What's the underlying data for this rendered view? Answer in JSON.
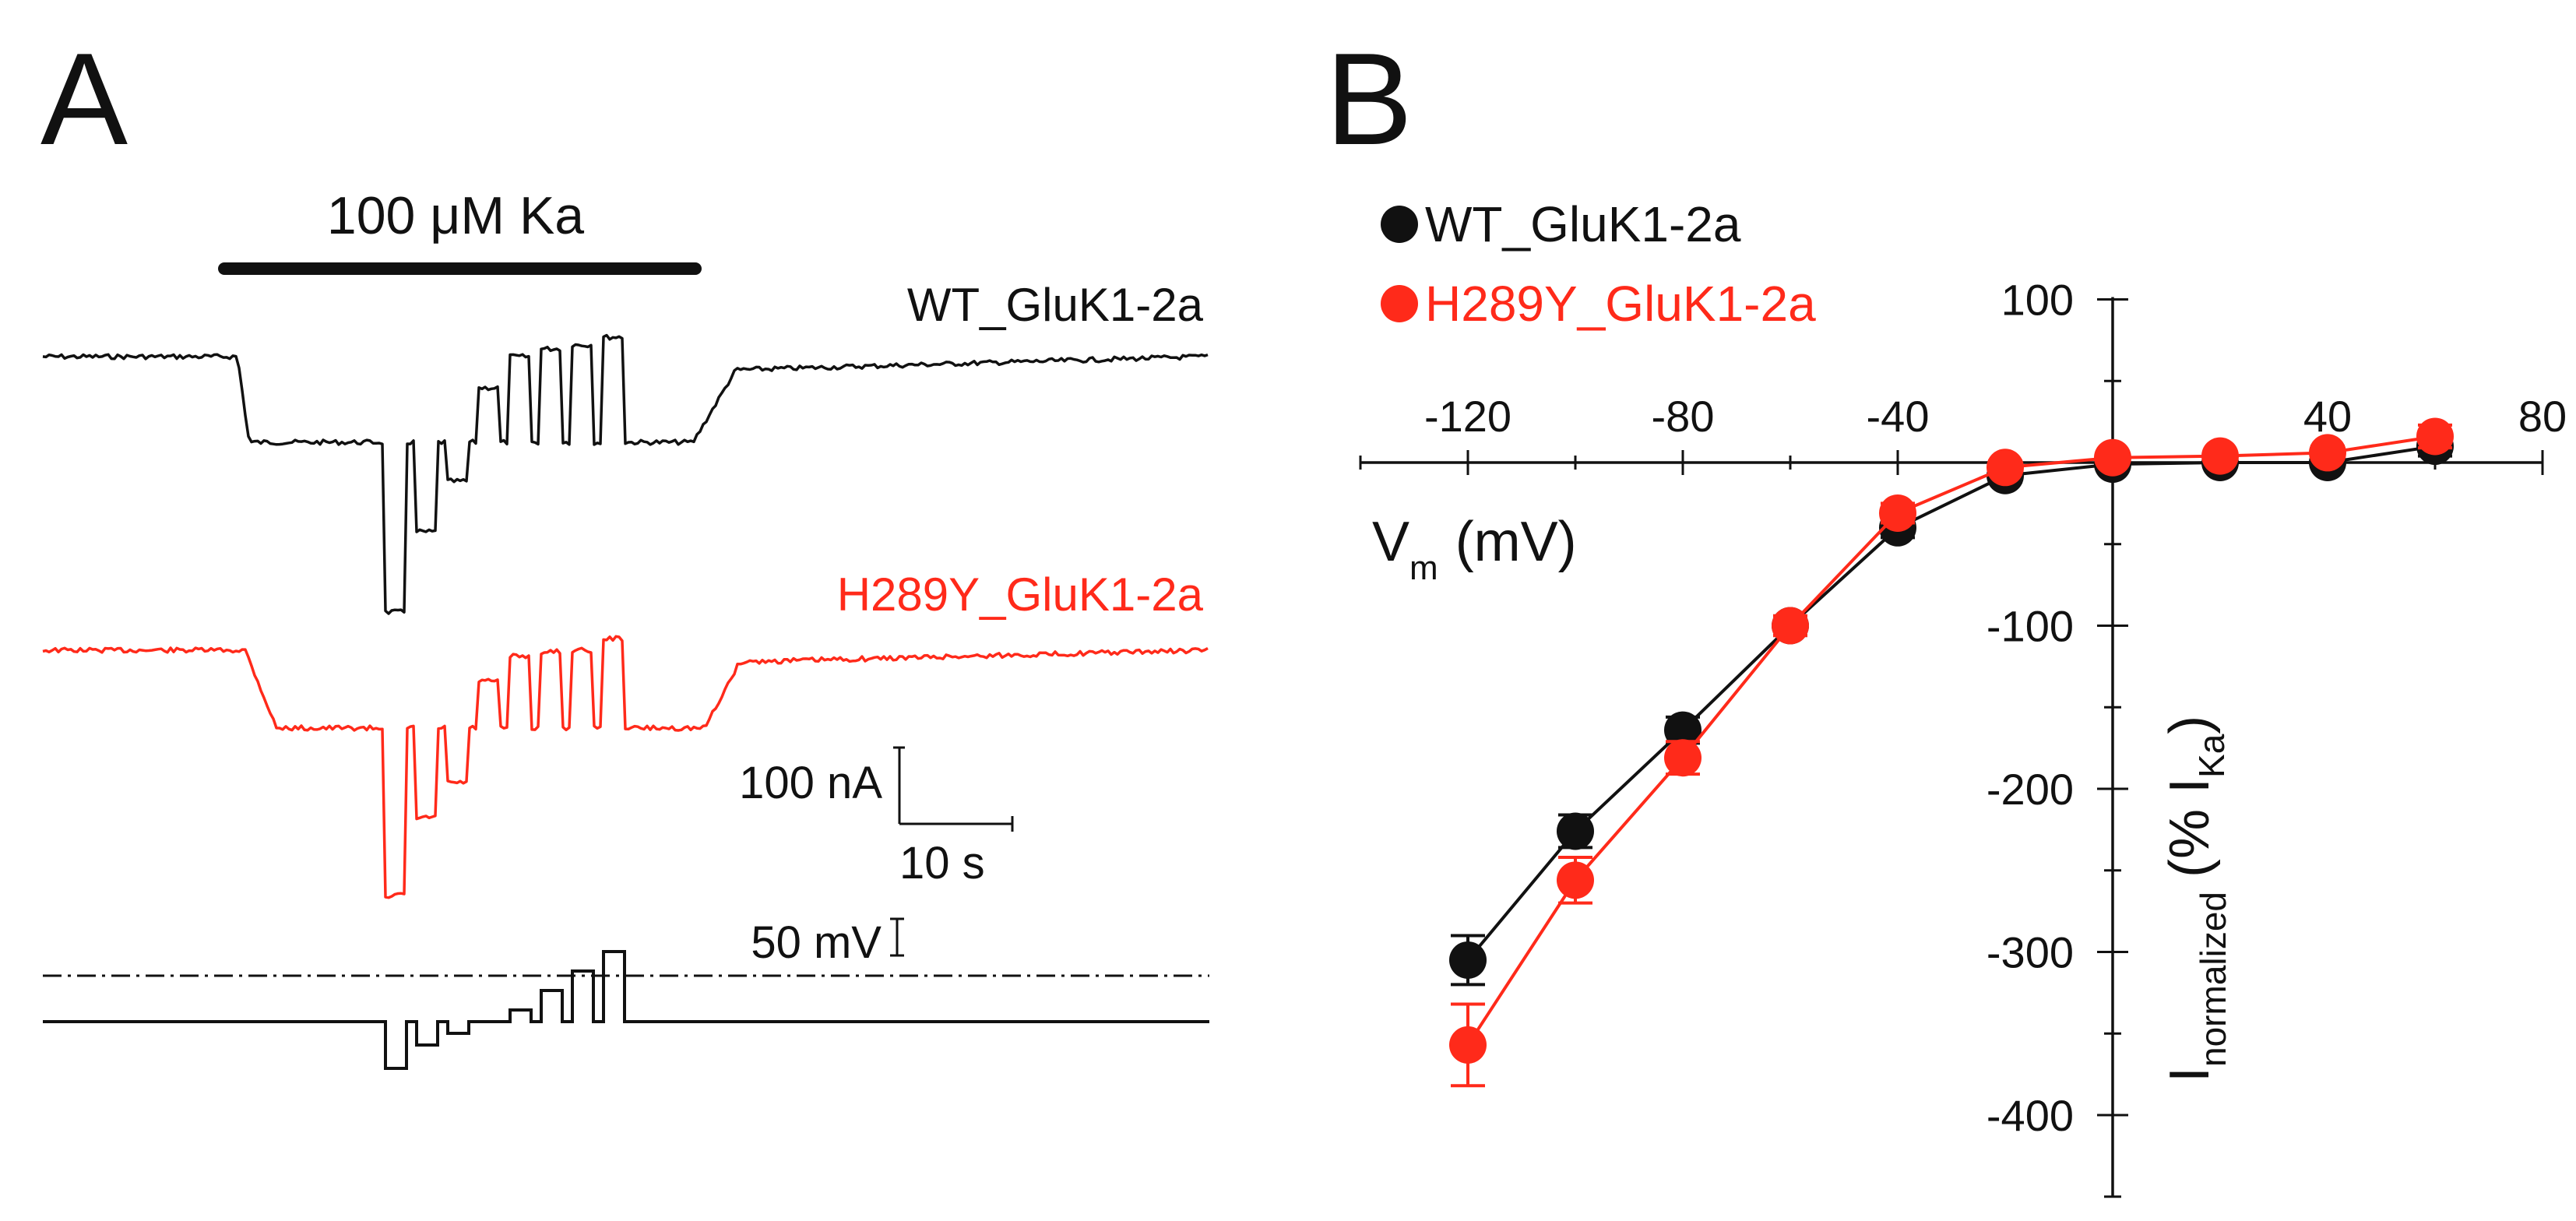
{
  "panel_a": {
    "label": "A",
    "agonist_label": "100 μM Ka",
    "trace_wt_label": "WT_GluK1-2a",
    "trace_mut_label": "H289Y_GluK1-2a",
    "scale_current": "100 nA",
    "scale_time": "10 s",
    "scale_voltage": "50 mV"
  },
  "colors": {
    "wt": "#111111",
    "mut": "#ff2a1a",
    "axis": "#111111"
  },
  "chart_data": [
    {
      "type": "line",
      "title": "",
      "panel_label": "B",
      "xlabel": "V",
      "xlabel_sub": "m",
      "xlabel_unit": "(mV)",
      "ylabel": "I",
      "ylabel_sub": "normalized",
      "ylabel_unit_open": "(% I",
      "ylabel_unit_sub": "Ka",
      "ylabel_unit_close": ")",
      "xlim": [
        -140,
        80
      ],
      "ylim": [
        -450,
        100
      ],
      "x_ticks": [
        -120,
        -80,
        -40,
        40,
        80
      ],
      "x_tick_labels": [
        "-120",
        "-80",
        "-40",
        "40",
        "80"
      ],
      "y_ticks": [
        100,
        -100,
        -200,
        -300,
        -400
      ],
      "y_tick_labels": [
        "100",
        "-100",
        "-200",
        "-300",
        "-400"
      ],
      "legend_position": "top-left",
      "series": [
        {
          "name": "WT_GluK1-2a",
          "color": "#111111",
          "x": [
            -120,
            -100,
            -80,
            -60,
            -40,
            -20,
            0,
            20,
            40,
            60
          ],
          "y": [
            -305,
            -226,
            -164,
            -100,
            -40,
            -8,
            -1,
            0,
            0,
            10
          ],
          "err": [
            15,
            10,
            8,
            6,
            6,
            4,
            3,
            3,
            3,
            6
          ]
        },
        {
          "name": "H289Y_GluK1-2a",
          "color": "#ff2a1a",
          "x": [
            -120,
            -100,
            -80,
            -60,
            -40,
            -20,
            0,
            20,
            40,
            60
          ],
          "y": [
            -357,
            -256,
            -181,
            -100,
            -31,
            -3,
            3,
            4,
            6,
            16
          ],
          "err": [
            25,
            14,
            10,
            6,
            6,
            4,
            3,
            3,
            4,
            7
          ]
        }
      ]
    }
  ]
}
